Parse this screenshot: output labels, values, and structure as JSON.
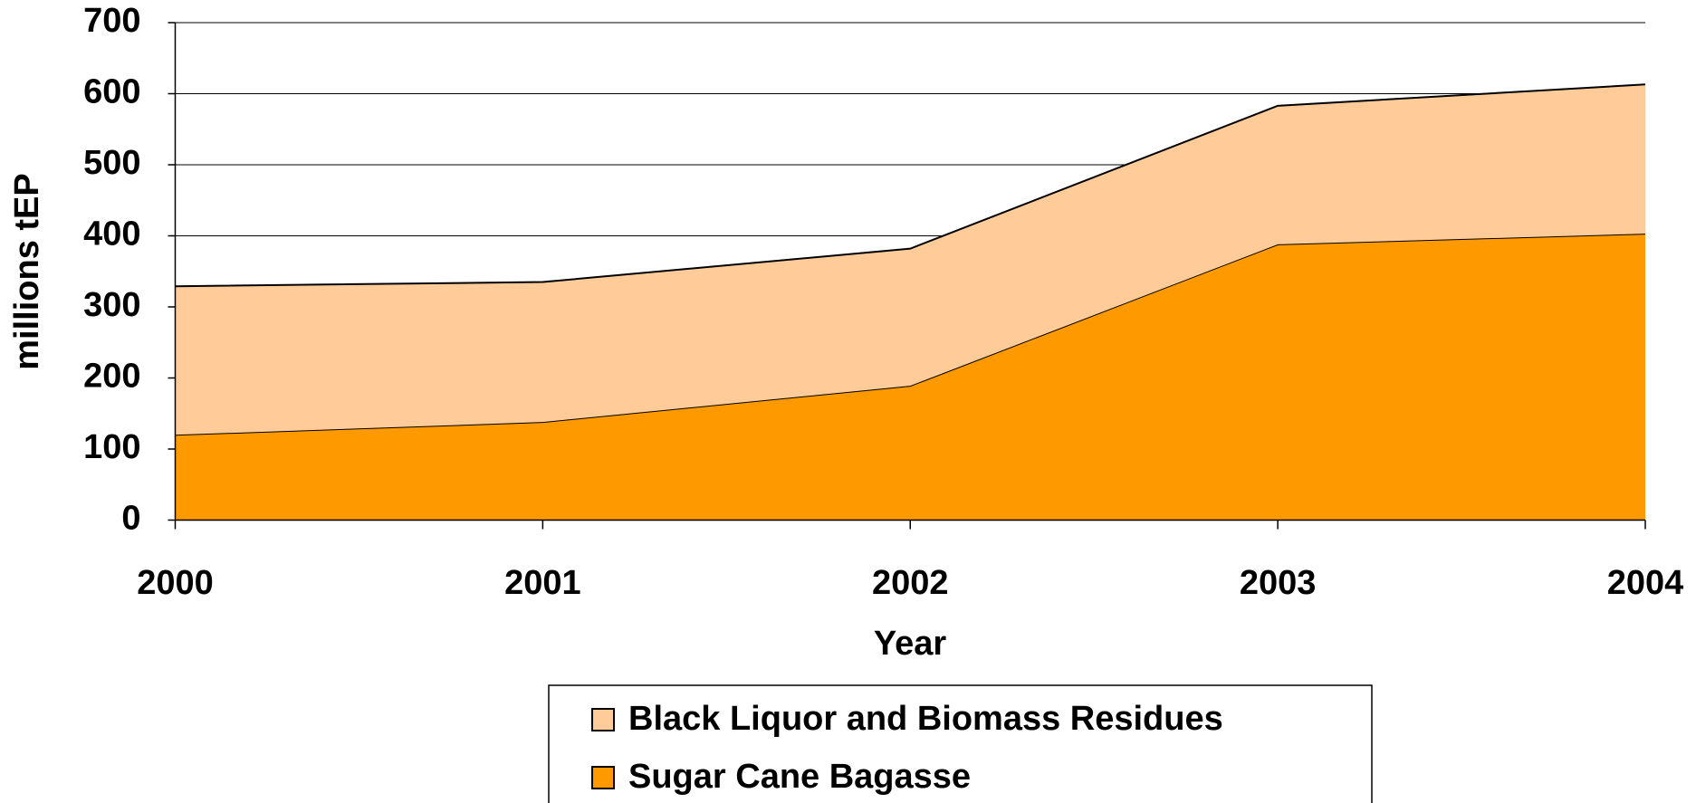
{
  "chart_data": {
    "type": "area",
    "stacked": true,
    "x_label": "Year",
    "y_label": "millions tEP",
    "categories": [
      "2000",
      "2001",
      "2002",
      "2003",
      "2004"
    ],
    "series": [
      {
        "name": "Sugar Cane Bagasse",
        "color": "#ff9900",
        "values": [
          120,
          138,
          189,
          388,
          403
        ]
      },
      {
        "name": "Black Liquor and Biomass Residues",
        "color": "#ffcc99",
        "values": [
          209,
          197,
          193,
          195,
          210
        ]
      }
    ],
    "ylim": [
      0,
      700
    ],
    "yticks": [
      0,
      100,
      200,
      300,
      400,
      500,
      600,
      700
    ],
    "grid": true
  }
}
